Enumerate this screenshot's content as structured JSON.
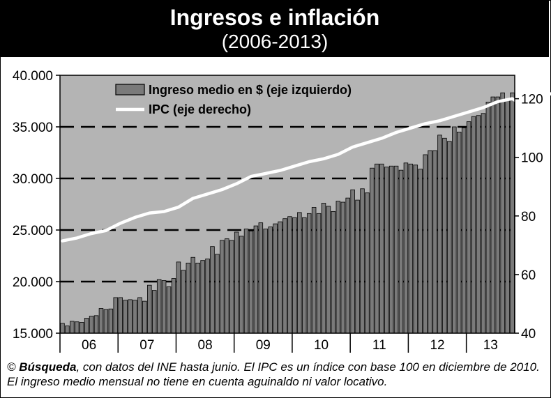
{
  "header": {
    "title": "Ingresos e inflación",
    "subtitle": "(2006-2013)"
  },
  "footer": {
    "copyright": "©",
    "source_name": "Búsqueda",
    "note": ", con datos del INE hasta junio. El IPC es un índice con base 100 en diciembre de 2010. El ingreso medio mensual no tiene en cuenta aguinaldo ni valor locativo."
  },
  "colors": {
    "plot_background": "#b4b4b4",
    "bar_fill": "#7a7a7a",
    "bar_stroke": "#000000",
    "ipc_line": "#ffffff",
    "gridline": "#000000"
  },
  "chart_data": {
    "type": "bar",
    "title": "Ingresos e inflación",
    "subtitle": "(2006-2013)",
    "x_tick_labels": [
      "06",
      "07",
      "08",
      "09",
      "10",
      "11",
      "12",
      "13"
    ],
    "left_axis": {
      "ticks": [
        15000,
        20000,
        25000,
        30000,
        35000,
        40000
      ],
      "tick_labels": [
        "15.000",
        "20.000",
        "25.000",
        "30.000",
        "35.000",
        "40.000"
      ],
      "ylim": [
        15000,
        40000
      ]
    },
    "right_axis": {
      "ticks": [
        40,
        60,
        80,
        100,
        120
      ],
      "tick_labels": [
        "40",
        "60",
        "80",
        "100",
        "120"
      ],
      "ylim": [
        40,
        128
      ]
    },
    "grid": "dashed horizontal at left-axis ticks",
    "legend_position": "top-left inside plot",
    "series": [
      {
        "name": "Ingreso medio en $ (eje izquierdo)",
        "kind": "bar",
        "axis": "left",
        "values": [
          15950,
          15700,
          16150,
          16100,
          16050,
          16450,
          16650,
          16700,
          17400,
          17300,
          17350,
          18450,
          18450,
          18200,
          18250,
          18200,
          18450,
          18100,
          19650,
          19150,
          20200,
          20100,
          19500,
          20300,
          21900,
          21100,
          21800,
          22350,
          21800,
          22050,
          22200,
          23400,
          22650,
          24000,
          24150,
          24000,
          24800,
          24400,
          25100,
          24900,
          25400,
          25700,
          25100,
          25300,
          25600,
          25800,
          26100,
          26300,
          26200,
          26700,
          26200,
          26600,
          27200,
          26600,
          27600,
          27300,
          26800,
          27800,
          27700,
          28100,
          28900,
          27900,
          29000,
          28600,
          31000,
          31400,
          31400,
          31100,
          31200,
          31200,
          30800,
          31500,
          31400,
          31300,
          30900,
          32300,
          32700,
          32700,
          34200,
          33900,
          33600,
          35000,
          34500,
          34900,
          35500,
          36000,
          36100,
          36300,
          37400,
          37900,
          37900,
          38300,
          37600,
          38300
        ]
      },
      {
        "name": "IPC (eje derecho)",
        "kind": "line",
        "axis": "right",
        "x": [
          0,
          3,
          6,
          9,
          12,
          15,
          18,
          21,
          24,
          27,
          30,
          33,
          36,
          39,
          42,
          45,
          48,
          51,
          54,
          57,
          60,
          63,
          66,
          69,
          72,
          75,
          78,
          81,
          84,
          87,
          90,
          93,
          96,
          99,
          102,
          105,
          108,
          110,
          111,
          113,
          115
        ],
        "values": [
          71.5,
          72.5,
          74,
          75,
          77.5,
          79.5,
          81,
          81.5,
          83,
          86,
          87.5,
          89,
          91,
          93.5,
          94.5,
          95.5,
          97,
          98.5,
          99.5,
          101,
          103.5,
          105,
          106.5,
          108.5,
          110,
          111.5,
          112.5,
          114,
          115.5,
          117,
          119,
          120,
          117,
          121,
          122,
          123.5,
          122.5,
          123.5,
          124,
          124.2,
          124.3
        ]
      }
    ]
  }
}
